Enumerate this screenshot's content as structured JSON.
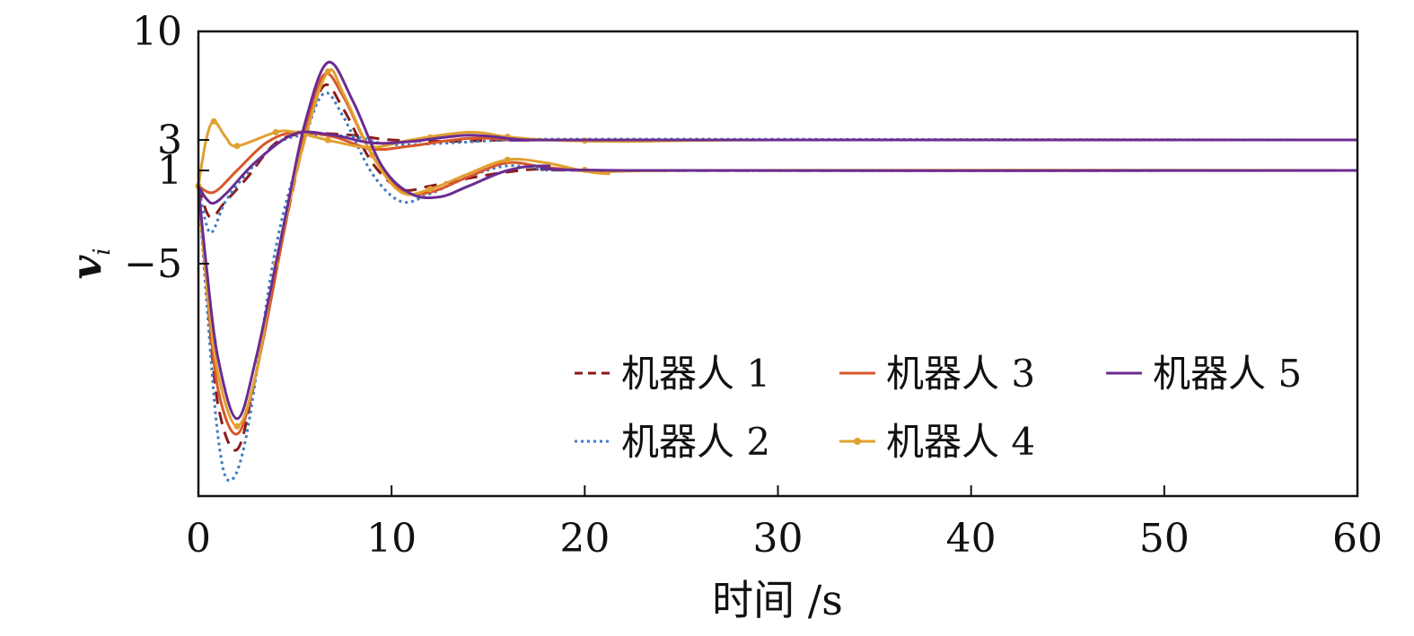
{
  "chart_data": {
    "type": "line",
    "xlabel": "时间 /s",
    "ylabel": "v",
    "ylabel_subscript": "i",
    "xlim": [
      0,
      60
    ],
    "ylim": [
      -20,
      10
    ],
    "xticks": [
      0,
      10,
      20,
      30,
      40,
      50,
      60
    ],
    "yticks": [
      10,
      3,
      1,
      -5
    ],
    "grid": false,
    "legend": {
      "position": "lower-right",
      "columns": 3
    },
    "series": [
      {
        "name": "机器人 1",
        "color": "#8b1a1a",
        "style": "dashed",
        "marker": "none",
        "curves": [
          [
            [
              0,
              0
            ],
            [
              0.6,
              -2
            ],
            [
              1.4,
              -1
            ],
            [
              2.5,
              0.5
            ],
            [
              4,
              2.8
            ],
            [
              5.5,
              3.4
            ],
            [
              8,
              3.3
            ],
            [
              10,
              3.0
            ],
            [
              13,
              2.9
            ],
            [
              16,
              3.0
            ],
            [
              20,
              3.0
            ],
            [
              60,
              3.0
            ]
          ],
          [
            [
              0,
              0
            ],
            [
              0.4,
              -6
            ],
            [
              1,
              -14
            ],
            [
              2,
              -17
            ],
            [
              3,
              -12
            ],
            [
              4.5,
              -2.5
            ],
            [
              5.5,
              3
            ],
            [
              6.5,
              6.5
            ],
            [
              7.5,
              5
            ],
            [
              9,
              1.5
            ],
            [
              10.5,
              -0.2
            ],
            [
              12,
              0
            ],
            [
              14,
              0.5
            ],
            [
              16,
              0.9
            ],
            [
              18,
              1.1
            ],
            [
              22,
              1.0
            ],
            [
              60,
              1.0
            ]
          ]
        ]
      },
      {
        "name": "机器人 2",
        "color": "#3b7bbf",
        "style": "dotted",
        "marker": "none",
        "curves": [
          [
            [
              0,
              0
            ],
            [
              0.6,
              -3
            ],
            [
              1.4,
              -1
            ],
            [
              2.5,
              0.8
            ],
            [
              4,
              2.7
            ],
            [
              5.5,
              3.3
            ],
            [
              8,
              3.2
            ],
            [
              10,
              2.7
            ],
            [
              13,
              2.8
            ],
            [
              16,
              3.0
            ],
            [
              20,
              3.05
            ],
            [
              60,
              3.0
            ]
          ],
          [
            [
              0,
              0
            ],
            [
              0.4,
              -7
            ],
            [
              1,
              -16
            ],
            [
              1.6,
              -19
            ],
            [
              2.5,
              -16
            ],
            [
              4,
              -4
            ],
            [
              5.5,
              3
            ],
            [
              6.5,
              6
            ],
            [
              7.5,
              4.5
            ],
            [
              9,
              0.8
            ],
            [
              10.5,
              -1
            ],
            [
              12,
              -0.5
            ],
            [
              14,
              0.6
            ],
            [
              16,
              1.3
            ],
            [
              18,
              1.1
            ],
            [
              22,
              1.0
            ],
            [
              60,
              1.0
            ]
          ]
        ]
      },
      {
        "name": "机器人 3",
        "color": "#d9572a",
        "style": "solid",
        "marker": "none",
        "curves": [
          [
            [
              0,
              0
            ],
            [
              0.8,
              -0.4
            ],
            [
              2,
              1
            ],
            [
              3.5,
              2.8
            ],
            [
              5,
              3.5
            ],
            [
              7,
              3.2
            ],
            [
              9,
              2.4
            ],
            [
              11,
              2.6
            ],
            [
              14,
              3.1
            ],
            [
              17,
              3.0
            ],
            [
              20,
              3.0
            ],
            [
              60,
              3.0
            ]
          ],
          [
            [
              0,
              0
            ],
            [
              0.4,
              -6
            ],
            [
              1,
              -13
            ],
            [
              2,
              -16
            ],
            [
              3,
              -12
            ],
            [
              4.5,
              -2.5
            ],
            [
              5.5,
              3.5
            ],
            [
              6.5,
              7.2
            ],
            [
              7.5,
              5.8
            ],
            [
              9,
              2
            ],
            [
              10.5,
              -0.3
            ],
            [
              12,
              -0.4
            ],
            [
              14,
              0.6
            ],
            [
              16,
              1.5
            ],
            [
              18,
              1.2
            ],
            [
              21,
              0.9
            ],
            [
              25,
              1.0
            ],
            [
              60,
              1.0
            ]
          ]
        ]
      },
      {
        "name": "机器人 4",
        "color": "#e0a030",
        "style": "solid",
        "marker": "circle",
        "marker_x": [
          0,
          0.8,
          2,
          4,
          6.7,
          9,
          12,
          16,
          20
        ],
        "curves": [
          [
            [
              0,
              0
            ],
            [
              0.4,
              3
            ],
            [
              0.8,
              4.2
            ],
            [
              1.4,
              3.2
            ],
            [
              2,
              2.6
            ],
            [
              4,
              3.5
            ],
            [
              5,
              3.5
            ],
            [
              7,
              2.9
            ],
            [
              9,
              2.5
            ],
            [
              11,
              3.0
            ],
            [
              14,
              3.5
            ],
            [
              16,
              3.2
            ],
            [
              18,
              3.0
            ],
            [
              22,
              2.9
            ],
            [
              30,
              3.0
            ],
            [
              60,
              3.0
            ]
          ],
          [
            [
              0,
              0
            ],
            [
              0.4,
              -6
            ],
            [
              1,
              -12
            ],
            [
              2,
              -15.5
            ],
            [
              3,
              -12
            ],
            [
              4,
              -5
            ],
            [
              5.5,
              3
            ],
            [
              6.7,
              7.4
            ],
            [
              7.5,
              6
            ],
            [
              9,
              2
            ],
            [
              10.5,
              -0.4
            ],
            [
              12,
              -0.2
            ],
            [
              14,
              0.8
            ],
            [
              16,
              1.7
            ],
            [
              18,
              1.5
            ],
            [
              21,
              0.8
            ],
            [
              25,
              1.0
            ],
            [
              60,
              1.0
            ]
          ]
        ]
      },
      {
        "name": "机器人 5",
        "color": "#6a2c91",
        "style": "solid",
        "marker": "none",
        "curves": [
          [
            [
              0,
              0
            ],
            [
              0.4,
              -0.8
            ],
            [
              0.8,
              -1.1
            ],
            [
              1.5,
              -0.4
            ],
            [
              3,
              1.6
            ],
            [
              5,
              3.4
            ],
            [
              7,
              3.3
            ],
            [
              9,
              2.8
            ],
            [
              11,
              2.9
            ],
            [
              14,
              3.3
            ],
            [
              17,
              3.0
            ],
            [
              20,
              3.0
            ],
            [
              60,
              3.0
            ]
          ],
          [
            [
              0,
              0
            ],
            [
              0.4,
              -5
            ],
            [
              1,
              -11
            ],
            [
              2,
              -15
            ],
            [
              3,
              -11
            ],
            [
              4.5,
              -2
            ],
            [
              5.5,
              4
            ],
            [
              6.7,
              8
            ],
            [
              8,
              5.5
            ],
            [
              9.5,
              1.3
            ],
            [
              11,
              -0.5
            ],
            [
              12.5,
              -0.7
            ],
            [
              14,
              0
            ],
            [
              16,
              1.0
            ],
            [
              18,
              1.3
            ],
            [
              22,
              1.0
            ],
            [
              60,
              1.0
            ]
          ]
        ]
      }
    ]
  }
}
